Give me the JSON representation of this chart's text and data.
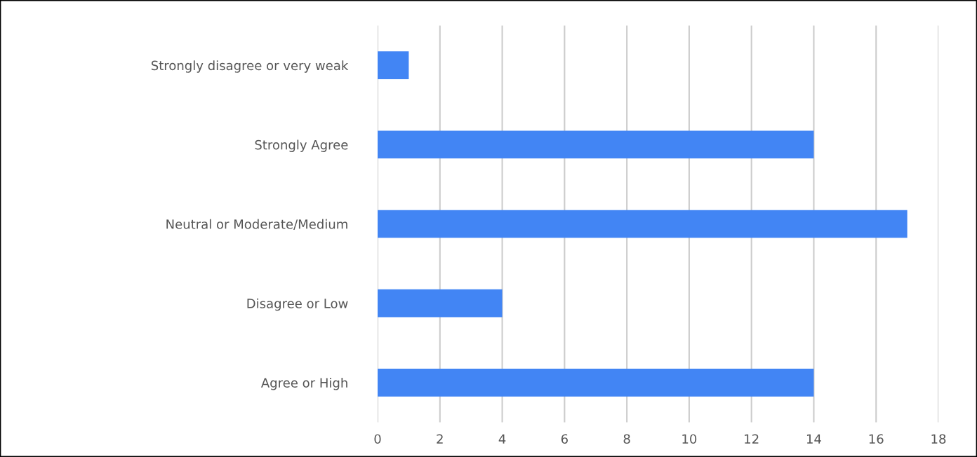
{
  "chart_data": {
    "type": "bar",
    "orientation": "horizontal",
    "categories": [
      "Strongly disagree or very weak",
      "Strongly Agree",
      "Neutral or Moderate/Medium",
      "Disagree or Low",
      "Agree or High"
    ],
    "values": [
      1,
      14,
      17,
      4,
      14
    ],
    "color": "#4285f4",
    "xlim": [
      0,
      18
    ],
    "xticks": [
      0,
      2,
      4,
      6,
      8,
      10,
      12,
      14,
      16,
      18
    ],
    "grid": "x"
  }
}
